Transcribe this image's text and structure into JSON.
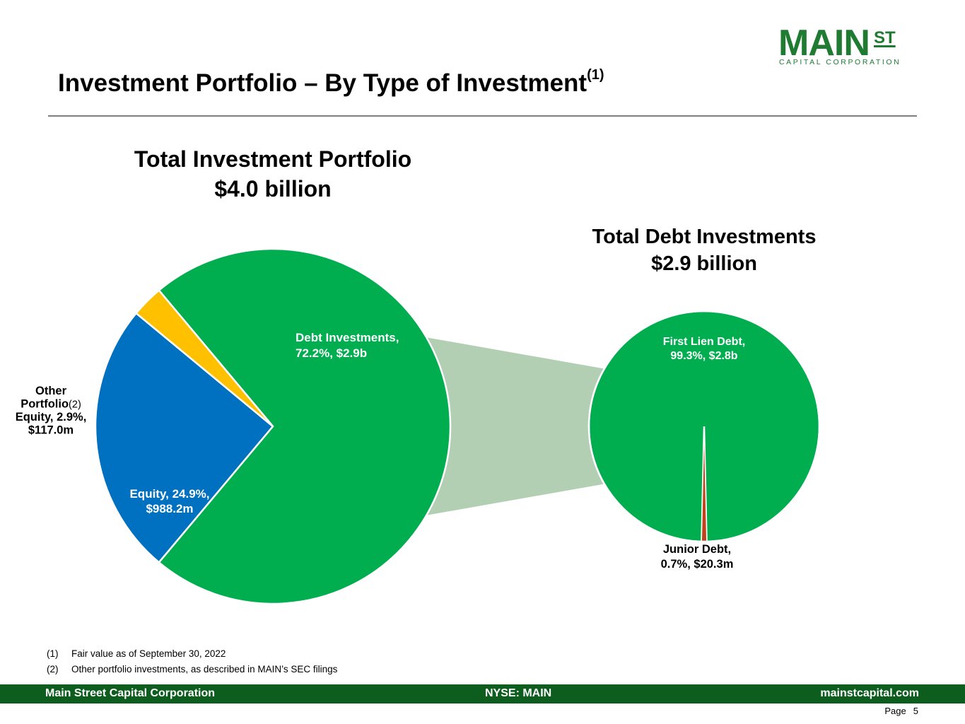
{
  "logo": {
    "main": "MAIN",
    "superscript": "ST",
    "sub": "CAPITAL CORPORATION"
  },
  "page_title": {
    "text": "Investment Portfolio – By Type of Investment",
    "note": "(1)"
  },
  "colors": {
    "debt": "#00ad4f",
    "equity": "#0070c0",
    "other_equity": "#ffc000",
    "junior_debt": "#c0431c",
    "connector": "#b3cfb3",
    "brand": "#1f7a32",
    "footer": "#0d5e1e"
  },
  "chart_data": [
    {
      "type": "pie",
      "title": "Total Investment Portfolio",
      "subtitle": "$4.0 billion",
      "slices": [
        {
          "label": "Debt Investments",
          "percent": 72.2,
          "value_text": "$2.9b",
          "display": [
            "Debt Investments,",
            "72.2%, $2.9b"
          ],
          "color": "#00ad4f"
        },
        {
          "label": "Equity",
          "percent": 24.9,
          "value_text": "$988.2m",
          "display": [
            "Equity, 24.9%,",
            "$988.2m"
          ],
          "color": "#0070c0"
        },
        {
          "label": "Other Portfolio Equity",
          "percent": 2.9,
          "value_text": "$117.0m",
          "display": [
            "Other",
            "Portfolio",
            "Equity, 2.9%,",
            "$117.0m"
          ],
          "note": "(2)",
          "color": "#ffc000"
        }
      ]
    },
    {
      "type": "pie",
      "title": "Total Debt Investments",
      "subtitle": "$2.9 billion",
      "slices": [
        {
          "label": "First Lien Debt",
          "percent": 99.3,
          "value_text": "$2.8b",
          "display": [
            "First Lien Debt,",
            "99.3%, $2.8b"
          ],
          "color": "#00ad4f"
        },
        {
          "label": "Junior Debt",
          "percent": 0.7,
          "value_text": "$20.3m",
          "display": [
            "Junior Debt,",
            "0.7%, $20.3m"
          ],
          "color": "#c0431c"
        }
      ]
    }
  ],
  "footnotes": [
    {
      "num": "(1)",
      "text": "Fair value as of September 30, 2022"
    },
    {
      "num": "(2)",
      "text": "Other portfolio investments, as described in MAIN’s SEC filings"
    }
  ],
  "footer": {
    "left": "Main Street Capital Corporation",
    "center": "NYSE: MAIN",
    "right": "mainstcapital.com"
  },
  "page": {
    "label": "Page",
    "number": "5"
  }
}
